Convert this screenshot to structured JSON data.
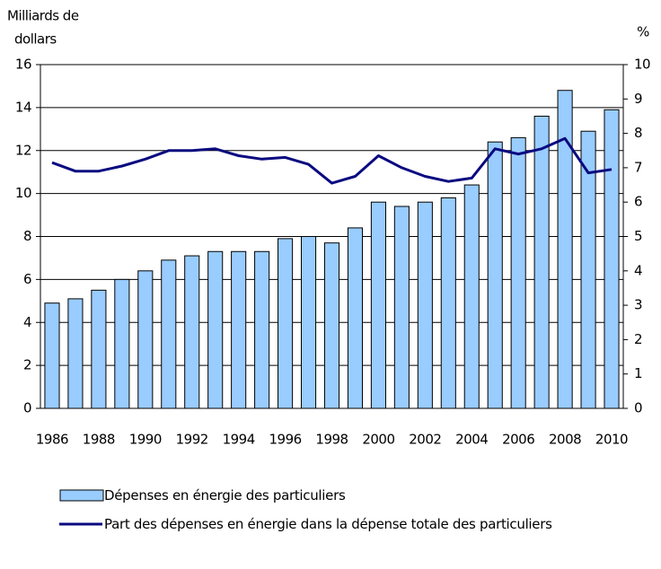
{
  "chart_data": {
    "type": "bar_line",
    "ylabel": [
      "Milliards de",
      "dollars"
    ],
    "y2label": "%",
    "categories": [
      "1986",
      null,
      "1988",
      null,
      "1990",
      null,
      "1992",
      null,
      "1994",
      null,
      "1996",
      null,
      "1998",
      null,
      "2000",
      null,
      "2002",
      null,
      "2004",
      null,
      "2006",
      null,
      "2008",
      null,
      "2010"
    ],
    "series": [
      {
        "name": "Dépenses en énergie des particuliers",
        "type": "bar",
        "color": "#99ccff",
        "values": [
          4.9,
          5.1,
          5.5,
          6.0,
          6.4,
          6.9,
          7.1,
          7.3,
          7.3,
          7.3,
          7.9,
          8.0,
          7.7,
          8.4,
          9.6,
          9.4,
          9.6,
          9.8,
          10.4,
          12.4,
          12.6,
          13.6,
          14.8,
          12.9,
          13.9
        ]
      },
      {
        "name": "Part des dépenses en énergie dans la dépense totale des particuliers",
        "type": "line",
        "color": "#0a0a80",
        "axis": "y2",
        "values": [
          7.15,
          6.9,
          6.9,
          7.05,
          7.25,
          7.5,
          7.5,
          7.55,
          7.35,
          7.25,
          7.3,
          7.1,
          6.55,
          6.75,
          7.35,
          7.0,
          6.75,
          6.6,
          6.7,
          7.55,
          7.4,
          7.55,
          7.85,
          6.85,
          6.95
        ]
      }
    ],
    "ylim": [
      0,
      16
    ],
    "yticks": [
      0,
      2,
      4,
      6,
      8,
      10,
      12,
      14,
      16
    ],
    "y2lim": [
      0,
      10
    ],
    "y2ticks": [
      0,
      1,
      2,
      3,
      4,
      5,
      6,
      7,
      8,
      9,
      10
    ],
    "grid": true
  }
}
